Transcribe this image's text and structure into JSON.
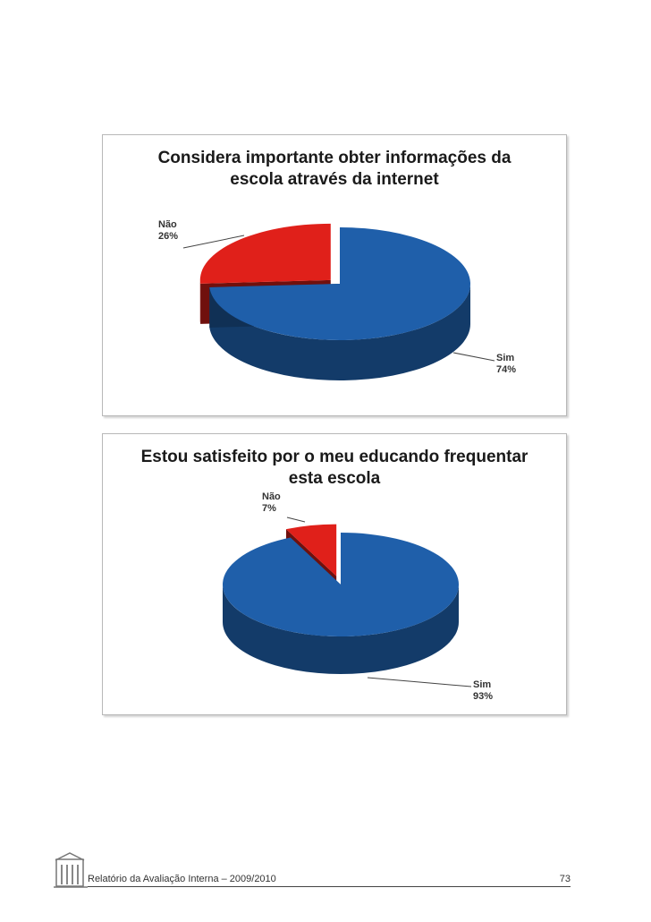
{
  "charts": [
    {
      "title_line1": "Considera importante obter informações da",
      "title_line2": "escola através da internet",
      "slices": [
        {
          "label": "Não",
          "pct_text": "26%"
        },
        {
          "label": "Sim",
          "pct_text": "74%"
        }
      ]
    },
    {
      "title_line1": "Estou satisfeito por o meu educando frequentar",
      "title_line2": "esta escola",
      "slices": [
        {
          "label": "Não",
          "pct_text": "7%"
        },
        {
          "label": "Sim",
          "pct_text": "93%"
        }
      ]
    }
  ],
  "chart_data": [
    {
      "type": "pie",
      "title": "Considera importante obter informações da escola através da internet",
      "categories": [
        "Não",
        "Sim"
      ],
      "values": [
        26,
        74
      ],
      "colors": [
        "#e0201a",
        "#1f5faa"
      ],
      "exploded": "Não"
    },
    {
      "type": "pie",
      "title": "Estou satisfeito por o meu educando frequentar esta escola",
      "categories": [
        "Não",
        "Sim"
      ],
      "values": [
        7,
        93
      ],
      "colors": [
        "#e0201a",
        "#1f5faa"
      ],
      "exploded": "Não"
    }
  ],
  "footer": {
    "text": "Relatório da Avaliação Interna – 2009/2010",
    "page_number": "73",
    "logo_icon": "school-building-icon"
  }
}
